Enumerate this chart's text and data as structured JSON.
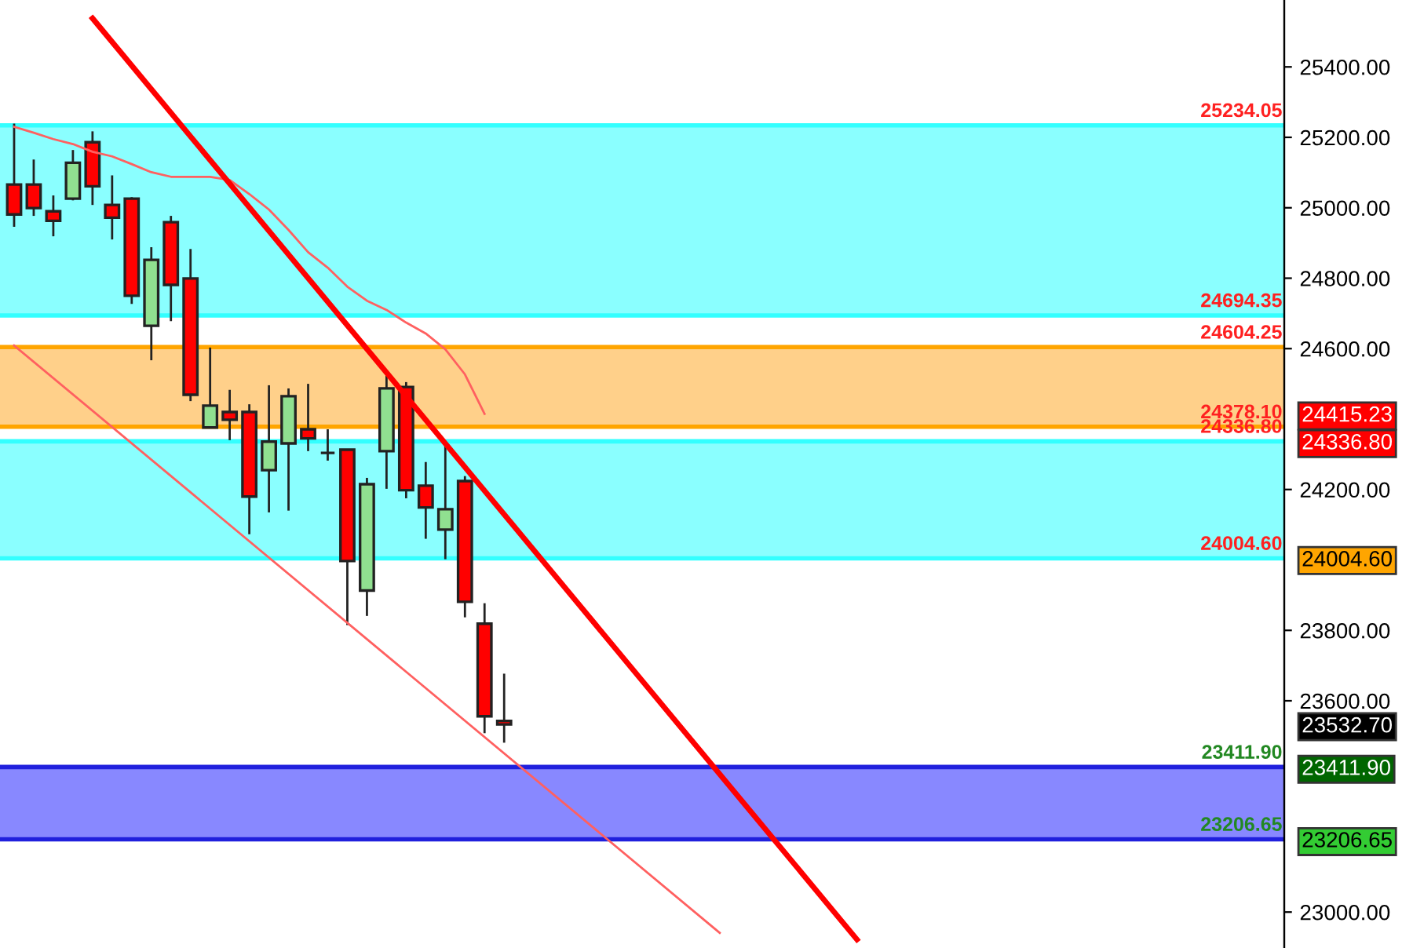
{
  "chart_data": {
    "type": "candlestick",
    "categories": [
      null,
      null,
      null,
      null,
      null,
      null,
      null,
      null,
      null,
      null,
      null,
      null,
      null,
      null,
      null,
      null,
      null,
      null,
      null,
      null,
      null,
      null,
      null,
      null,
      null,
      null,
      null,
      null,
      null,
      null,
      null,
      null,
      null,
      null,
      null,
      null,
      null,
      null,
      null,
      null,
      null,
      null,
      null,
      null,
      null,
      null,
      null,
      null,
      null,
      null,
      null,
      null,
      null,
      null,
      null,
      null,
      null,
      null,
      null,
      null,
      null,
      null,
      null,
      null,
      null
    ],
    "ohlc": [
      [
        25066,
        25239,
        24946,
        24981
      ],
      [
        25066,
        25137,
        24977,
        24999
      ],
      [
        24990,
        25035,
        24919,
        24963
      ],
      [
        25026,
        25164,
        25021,
        25128
      ],
      [
        25186,
        25217,
        25008,
        25061
      ],
      [
        25008,
        25092,
        24910,
        24972
      ],
      [
        25026,
        25030,
        24727,
        24750
      ],
      [
        24665,
        24888,
        24567,
        24852
      ],
      [
        24959,
        24977,
        24678,
        24781
      ],
      [
        24799,
        24883,
        24451,
        24469
      ],
      [
        24376,
        24603,
        24376,
        24438
      ],
      [
        24420,
        24483,
        24340,
        24398
      ],
      [
        24420,
        24442,
        24073,
        24180
      ],
      [
        24255,
        24496,
        24135,
        24336
      ],
      [
        24331,
        24487,
        24140,
        24465
      ],
      [
        24371,
        24500,
        24309,
        24345
      ],
      [
        24304,
        24371,
        24282,
        24304
      ],
      [
        24313,
        24313,
        23815,
        23997
      ],
      [
        23913,
        24233,
        23841,
        24215
      ],
      [
        24309,
        24531,
        24202,
        24487
      ],
      [
        24491,
        24505,
        24175,
        24198
      ],
      [
        24211,
        24278,
        24060,
        24149
      ],
      [
        24086,
        24327,
        24002,
        24144
      ],
      [
        24224,
        24238,
        23837,
        23881
      ],
      [
        23819,
        23877,
        23508,
        23556
      ],
      [
        23543,
        23677,
        23481,
        23532.7
      ],
      null,
      null,
      null,
      null,
      null,
      null,
      null,
      null,
      null,
      null,
      null,
      null,
      null,
      null,
      null,
      null,
      null,
      null,
      null,
      null,
      null,
      null,
      null,
      null,
      null,
      null,
      null,
      null,
      null,
      null,
      null,
      null,
      null,
      null,
      null,
      null,
      null,
      null,
      null
    ],
    "colors": [
      "#ff0000",
      "#ff0000",
      "#ff0000",
      "#90e090",
      "#ff0000",
      "#ff0000",
      "#ff0000",
      "#90e090",
      "#ff0000",
      "#ff0000",
      "#90e090",
      "#ff0000",
      "#ff0000",
      "#90e090",
      "#90e090",
      "#ff0000",
      "#222222",
      "#ff0000",
      "#90e090",
      "#90e090",
      "#ff0000",
      "#ff0000",
      "#90e090",
      "#ff0000",
      "#ff0000",
      "#ff0000",
      null,
      null,
      null,
      null,
      null,
      null,
      null,
      null,
      null,
      null,
      null,
      null,
      null,
      null,
      null,
      null,
      null,
      null,
      null,
      null,
      null,
      null,
      null,
      null,
      null,
      null,
      null,
      null,
      null,
      null,
      null,
      null,
      null,
      null,
      null,
      null,
      null,
      null,
      null
    ],
    "series": [
      {
        "type": "line",
        "color": "#ff6060",
        "values": [
          25230,
          25213,
          25195,
          25181,
          25159,
          25146,
          25124,
          25101,
          25088,
          25088,
          25088,
          25079,
          25039,
          24995,
          24937,
          24874,
          24830,
          24776,
          24736,
          24710,
          24674,
          24643,
          24598,
          24527,
          24415,
          null,
          null,
          null,
          null,
          null,
          null,
          null,
          null,
          null,
          null,
          null,
          null,
          null,
          null,
          null,
          null,
          null,
          null,
          null,
          null,
          null,
          null,
          null,
          null,
          null,
          null,
          null,
          null,
          null,
          null,
          null,
          null,
          null,
          null,
          null,
          null,
          null,
          null,
          null,
          null
        ]
      },
      {
        "type": "line",
        "color": "#ff0000",
        "values": [
          null,
          null,
          null,
          null,
          25538,
          null,
          null,
          null,
          null,
          null,
          null,
          null,
          null,
          null,
          null,
          null,
          null,
          null,
          null,
          null,
          null,
          null,
          null,
          null,
          null,
          null,
          null,
          null,
          null,
          null,
          null,
          null,
          null,
          null,
          null,
          null,
          null,
          null,
          null,
          null,
          null,
          null,
          null,
          22922,
          null,
          null,
          null,
          null,
          null,
          null,
          null,
          null,
          null,
          null,
          null,
          null,
          null,
          null,
          null,
          null,
          null,
          null,
          null,
          null,
          null
        ]
      },
      {
        "type": "line",
        "color": "#ff6060",
        "values": [
          24609,
          null,
          null,
          null,
          null,
          null,
          null,
          null,
          null,
          null,
          null,
          null,
          null,
          null,
          null,
          null,
          null,
          null,
          null,
          null,
          null,
          null,
          null,
          null,
          null,
          null,
          null,
          null,
          null,
          null,
          null,
          null,
          null,
          null,
          null,
          null,
          22941,
          null,
          null,
          null,
          null,
          null,
          null,
          null,
          null,
          null,
          null,
          null,
          null,
          null,
          null,
          null,
          null,
          null,
          null,
          null,
          null,
          null,
          null,
          null,
          null,
          null,
          null,
          null,
          null
        ]
      }
    ],
    "bands": [
      {
        "axis": "y",
        "from": 24694.35,
        "to": 25234.05,
        "color": "#8affff"
      },
      {
        "axis": "y",
        "from": 24378.1,
        "to": 24604.25,
        "color": "#ffd08a"
      },
      {
        "axis": "y",
        "from": 24004.6,
        "to": 24336.8,
        "color": "#8affff"
      },
      {
        "axis": "y",
        "from": 23206.65,
        "to": 23411.9,
        "color": "#8888ff"
      }
    ],
    "ref_lines": [
      {
        "axis": "y",
        "value": 25234.05,
        "label": "25234.05",
        "color": "#33ffff"
      },
      {
        "axis": "y",
        "value": 24694.35,
        "label": "24694.35",
        "color": "#33ffff"
      },
      {
        "axis": "y",
        "value": 24604.25,
        "label": "24604.25",
        "color": "#ffa500"
      },
      {
        "axis": "y",
        "value": 24378.1,
        "label": "24378.10",
        "color": "#ffa500"
      },
      {
        "axis": "y",
        "value": 24336.8,
        "label": "24336.80",
        "color": "#33ffff"
      },
      {
        "axis": "y",
        "value": 24004.6,
        "label": "24004.60",
        "color": "#33ffff"
      },
      {
        "axis": "y",
        "value": 23411.9,
        "label": "23411.90",
        "color": "#2020dd"
      },
      {
        "axis": "y",
        "value": 23206.65,
        "label": "23206.65",
        "color": "#2020dd"
      }
    ],
    "ylim": [
      22898,
      25590
    ],
    "yticks": [
      {
        "value": 23000,
        "label": "23000.00"
      },
      {
        "value": 23600,
        "label": "23600.00"
      },
      {
        "value": 23800,
        "label": "23800.00"
      },
      {
        "value": 24200,
        "label": "24200.00"
      },
      {
        "value": 24600,
        "label": "24600.00"
      },
      {
        "value": 24800,
        "label": "24800.00"
      },
      {
        "value": 25000,
        "label": "25000.00"
      },
      {
        "value": 25200,
        "label": "25200.00"
      },
      {
        "value": 25400,
        "label": "25400.00"
      }
    ],
    "y2lim": [
      22898,
      25590
    ],
    "y2ticks": [
      {
        "value": 24415.23,
        "label": "24415.23"
      },
      {
        "value": 24336.8,
        "label": "24336.80"
      },
      {
        "value": 24004.6,
        "label": "24004.60"
      },
      {
        "value": 23532.7,
        "label": "23532.70"
      },
      {
        "value": 23411.9,
        "label": "23411.90"
      },
      {
        "value": 23206.65,
        "label": "23206.65"
      }
    ],
    "tick_labels": "y",
    "grid": false,
    "legend": false
  }
}
